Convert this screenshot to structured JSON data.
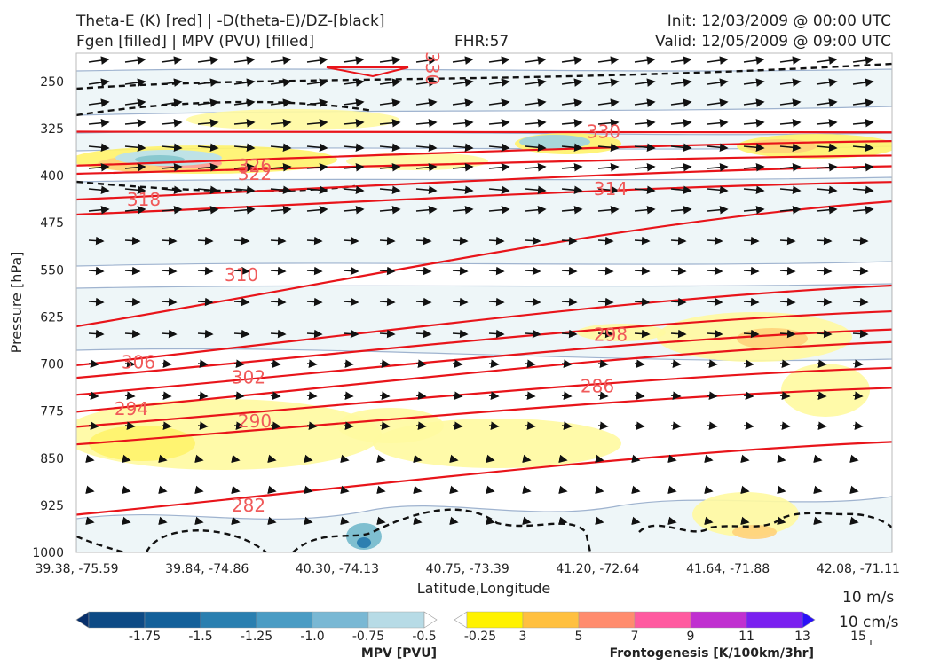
{
  "header": {
    "left_line1": "Theta-E (K) [red] | -D(theta-E)/DZ-[black]",
    "left_line2": "Fgen [filled] | MPV (PVU) [filled]",
    "center": "FHR:57",
    "right_line1": "Init: 12/03/2009 @ 00:00 UTC",
    "right_line2": "Valid: 12/05/2009 @ 09:00 UTC"
  },
  "reference_vectors": {
    "horizontal": "10 m/s",
    "vertical": "10 cm/s"
  },
  "chart_data": {
    "type": "cross-section",
    "xlabel": "Latitude,Longitude",
    "ylabel": "Pressure [hPa]",
    "x_ticks": [
      "39.38, -75.59",
      "39.84, -74.86",
      "40.30, -74.13",
      "40.75, -73.39",
      "41.20, -72.64",
      "41.64, -71.88",
      "42.08, -71.11"
    ],
    "y_ticks": [
      250,
      325,
      400,
      475,
      550,
      625,
      700,
      775,
      850,
      925,
      1000
    ],
    "ylim": [
      1000,
      205
    ],
    "theta_e_contours": [
      {
        "label": "330",
        "left": 330,
        "right": 331
      },
      {
        "label": "326",
        "left": 384,
        "right": 345
      },
      {
        "label": "322",
        "left": 397,
        "right": 368
      },
      {
        "label": "318",
        "left": 438,
        "right": 385
      },
      {
        "label": "314",
        "left": 462,
        "right": 410
      },
      {
        "label": "310",
        "left": 640,
        "right": 441
      },
      {
        "label": "306",
        "left": 702,
        "right": 575
      },
      {
        "label": "302",
        "left": 722,
        "right": 616
      },
      {
        "label": "298",
        "left": 749,
        "right": 645
      },
      {
        "label": "294",
        "left": 776,
        "right": 665
      },
      {
        "label": "290",
        "left": 800,
        "right": 706
      },
      {
        "label": "286",
        "left": 828,
        "right": 738
      },
      {
        "label": "282",
        "left": 940,
        "right": 824
      }
    ],
    "mpv_colorbar": {
      "title": "MPV [PVU]",
      "ticks": [
        "-1.75",
        "-1.5",
        "-1.25",
        "-1.0",
        "-0.75",
        "-0.5",
        "-0.25"
      ],
      "colors": [
        "#08306b",
        "#0d4a85",
        "#13609a",
        "#2a7fb0",
        "#4a9cc4",
        "#79b8d4",
        "#b7dbe6",
        "#ffffff"
      ]
    },
    "fgen_colorbar": {
      "title": "Frontogenesis [K/100km/3hr]",
      "ticks": [
        "3",
        "5",
        "7",
        "9",
        "11",
        "13",
        "15"
      ],
      "colors": [
        "#ffffff",
        "#fff200",
        "#ffc040",
        "#ff8c6e",
        "#ff5aa0",
        "#c030d0",
        "#7a20f0",
        "#2a10f8"
      ]
    }
  }
}
